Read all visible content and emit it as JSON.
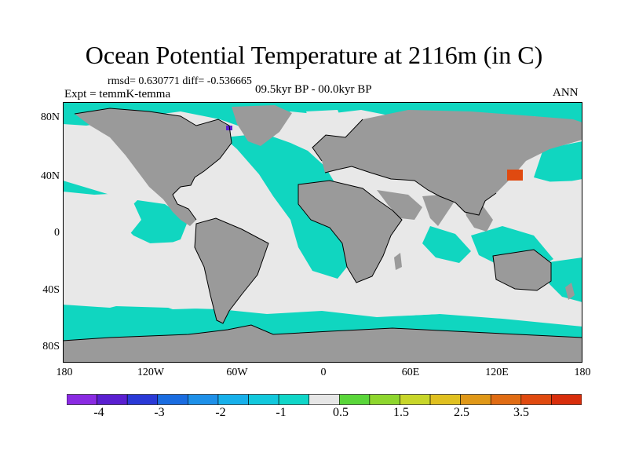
{
  "title": "Ocean Potential Temperature at 2116m (in C)",
  "stats": "rmsd= 0.630771 diff= -0.536665",
  "experiment": "Expt = temmK-temma",
  "period": "09.5kyr BP - 00.0kyr BP",
  "season": "ANN",
  "lat_labels": [
    "80N",
    "40N",
    "0",
    "40S",
    "80S"
  ],
  "lon_labels": [
    "180",
    "120W",
    "60W",
    "0",
    "60E",
    "120E",
    "180"
  ],
  "colorbar": {
    "colors": [
      "#8a2be2",
      "#5a1fd0",
      "#2a39d6",
      "#1a6ce0",
      "#1e90e8",
      "#17b0ea",
      "#12c8dc",
      "#10d6c8",
      "#e6e6e6",
      "#5ad63a",
      "#8ed62e",
      "#c8d62a",
      "#e0c020",
      "#e09818",
      "#e06c14",
      "#e04a10",
      "#d82e0c"
    ],
    "labels": [
      "-4",
      "-3",
      "-2",
      "-1",
      "0.5",
      "1.5",
      "2.5",
      "3.5"
    ]
  },
  "map_colors": {
    "land": "#9a9a9a",
    "neutral": "#e8e8e8",
    "cool": "#10d6c0",
    "cold": "#5a1fd0",
    "warm": "#e04a10",
    "coast": "#000000"
  }
}
